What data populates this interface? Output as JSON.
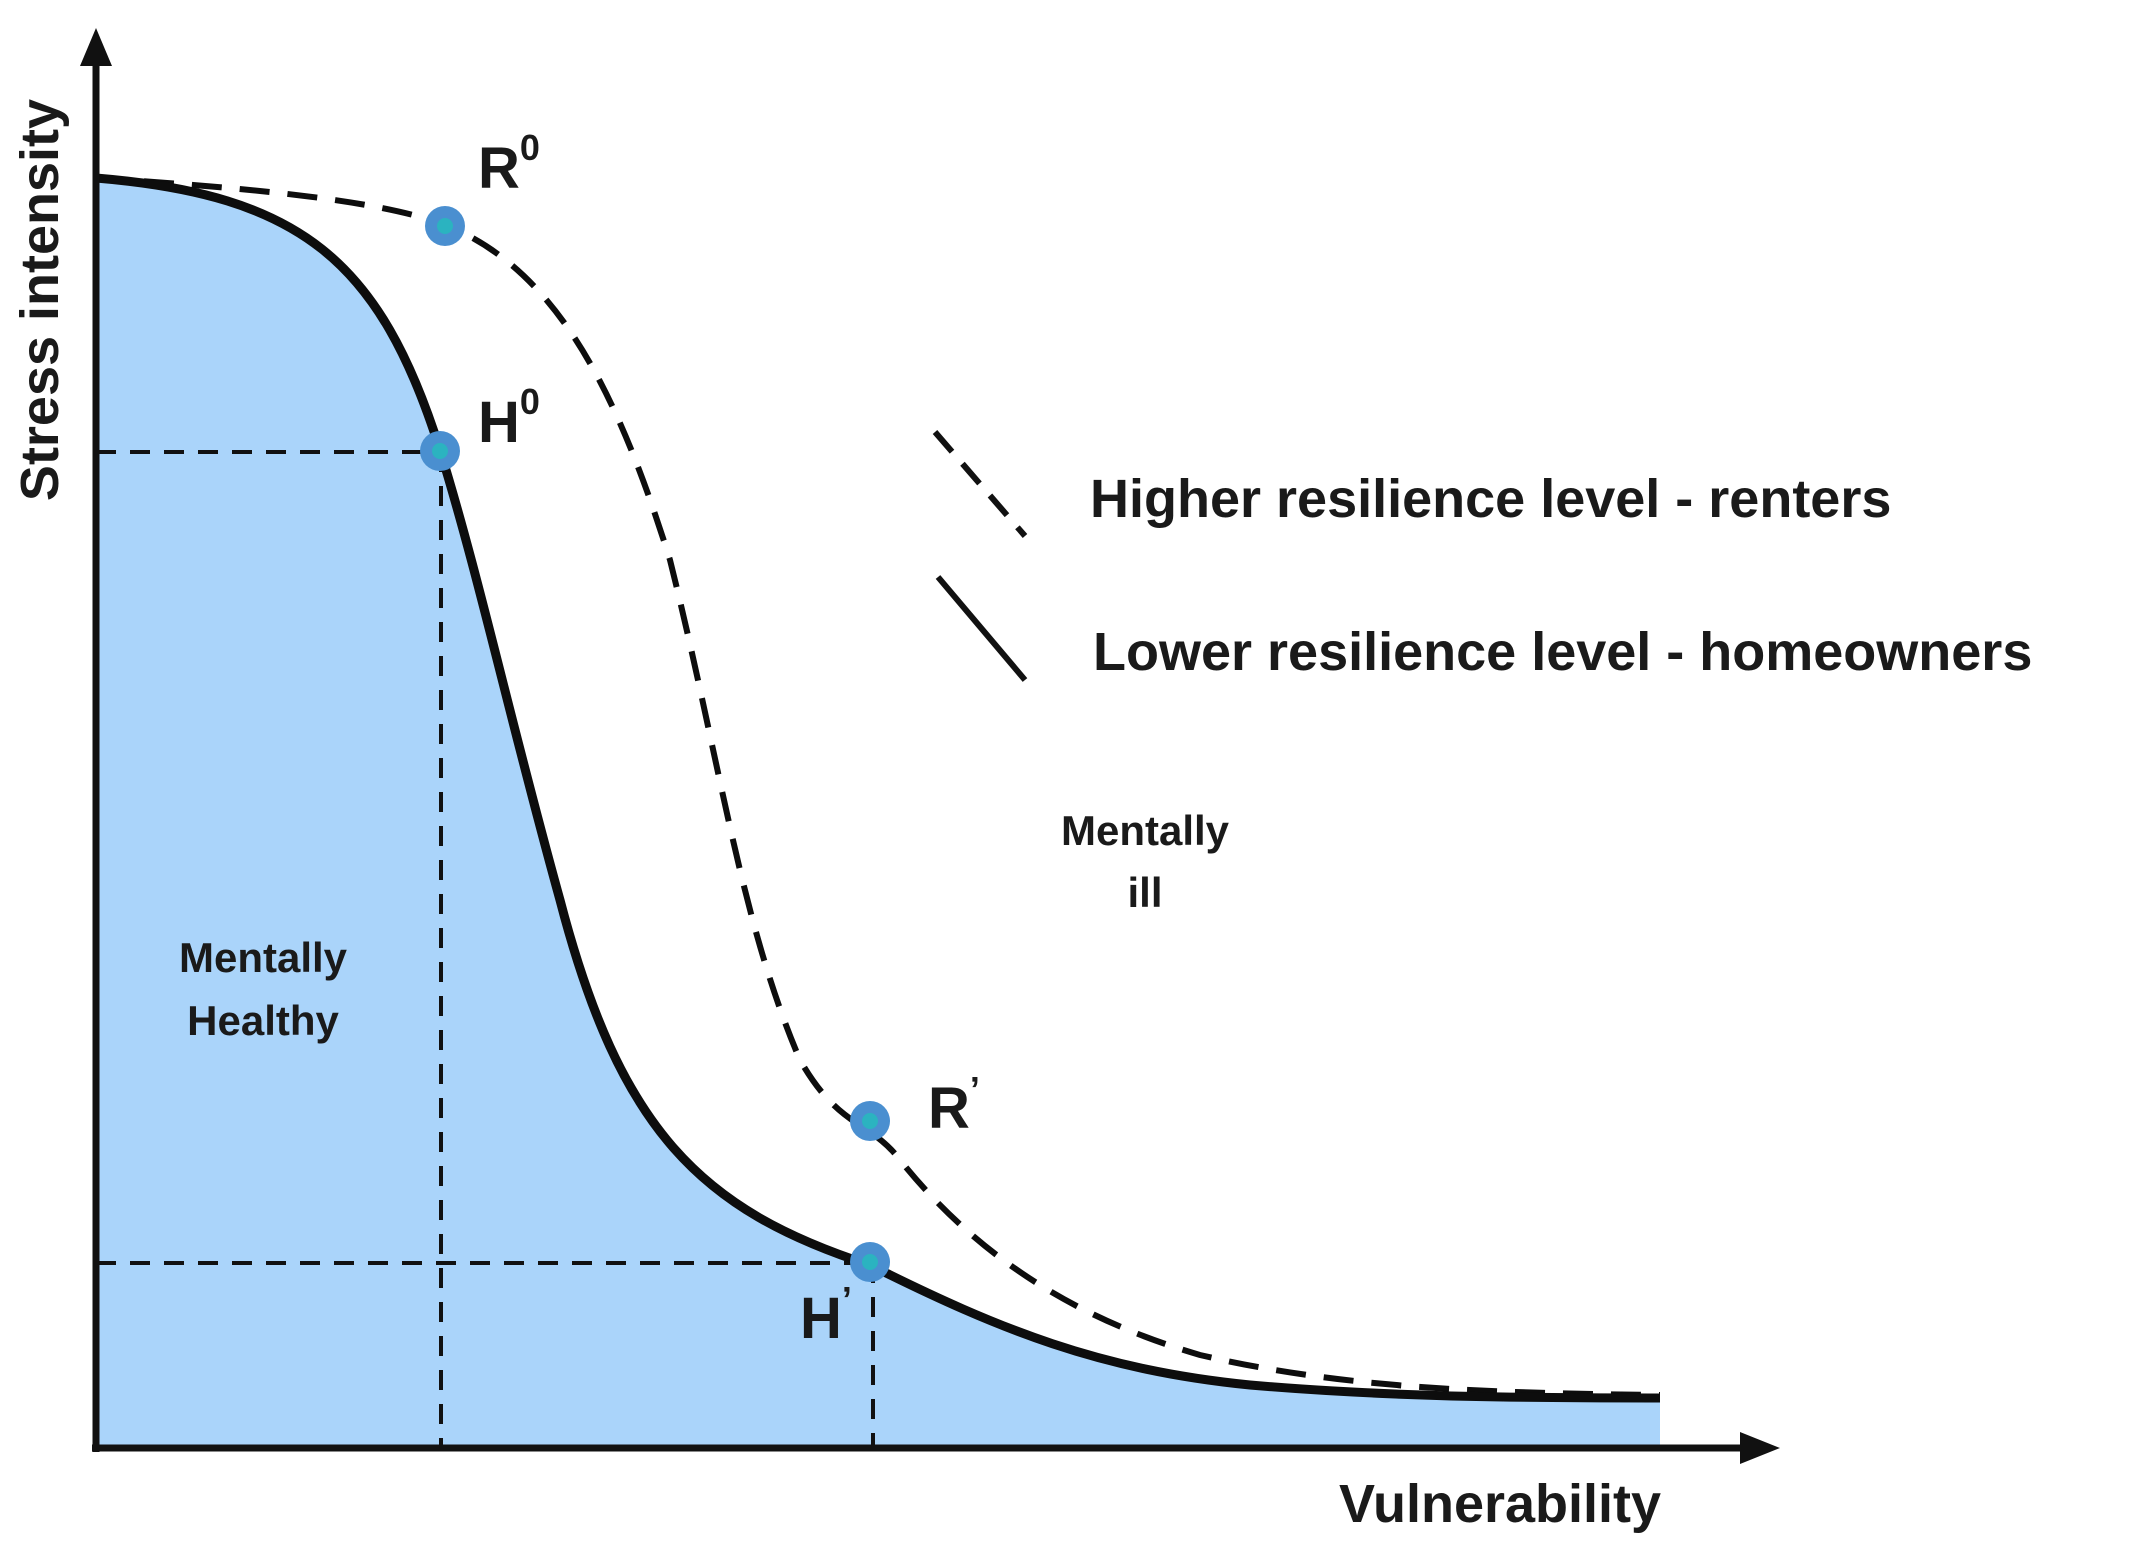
{
  "axes": {
    "y_label": "Stress intensity",
    "x_label": "Vulnerability"
  },
  "points": {
    "r0": {
      "base": "R",
      "mark": "0"
    },
    "h0": {
      "base": "H",
      "mark": "0"
    },
    "r1": {
      "base": "R",
      "mark": "’"
    },
    "h1": {
      "base": "H",
      "mark": "’"
    }
  },
  "legend": {
    "dashed": "Higher resilience level - renters",
    "solid": "Lower resilience level - homeowners"
  },
  "regions": {
    "healthy_line1": "Mentally",
    "healthy_line2": "Healthy",
    "ill_line1": "Mentally",
    "ill_line2": "ill"
  },
  "colors": {
    "fill": "#aad4fa",
    "curve": "#0d0d0d",
    "marker": "#4a8fd0",
    "marker_center": "#2bb3c0"
  }
}
